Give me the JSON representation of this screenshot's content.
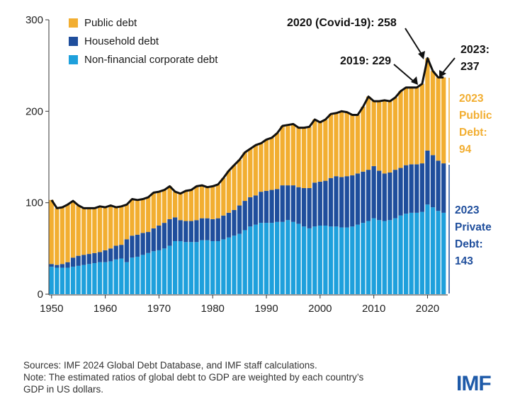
{
  "chart_data": {
    "type": "bar",
    "stacked": true,
    "title": "",
    "xlabel": "",
    "ylabel": "",
    "ylim": [
      0,
      300
    ],
    "yticks": [
      0,
      100,
      200,
      300
    ],
    "xticks": [
      1950,
      1960,
      1970,
      1980,
      1990,
      2000,
      2010,
      2020
    ],
    "legend_position": "top-left",
    "grid": false,
    "years": [
      1950,
      1951,
      1952,
      1953,
      1954,
      1955,
      1956,
      1957,
      1958,
      1959,
      1960,
      1961,
      1962,
      1963,
      1964,
      1965,
      1966,
      1967,
      1968,
      1969,
      1970,
      1971,
      1972,
      1973,
      1974,
      1975,
      1976,
      1977,
      1978,
      1979,
      1980,
      1981,
      1982,
      1983,
      1984,
      1985,
      1986,
      1987,
      1988,
      1989,
      1990,
      1991,
      1992,
      1993,
      1994,
      1995,
      1996,
      1997,
      1998,
      1999,
      2000,
      2001,
      2002,
      2003,
      2004,
      2005,
      2006,
      2007,
      2008,
      2009,
      2010,
      2011,
      2012,
      2013,
      2014,
      2015,
      2016,
      2017,
      2018,
      2019,
      2020,
      2021,
      2022,
      2023
    ],
    "series": [
      {
        "name": "Non-financial corporate debt",
        "color": "#1ea0dc",
        "values": [
          30,
          29,
          29,
          29,
          30,
          31,
          32,
          33,
          34,
          35,
          35,
          36,
          38,
          39,
          35,
          40,
          41,
          43,
          45,
          47,
          48,
          50,
          53,
          58,
          58,
          57,
          57,
          57,
          59,
          59,
          58,
          58,
          60,
          62,
          64,
          66,
          70,
          74,
          76,
          78,
          78,
          78,
          79,
          79,
          81,
          79,
          77,
          74,
          72,
          74,
          75,
          75,
          74,
          74,
          73,
          73,
          74,
          76,
          78,
          80,
          83,
          81,
          80,
          81,
          83,
          86,
          88,
          89,
          89,
          90,
          98,
          95,
          91,
          89
        ]
      },
      {
        "name": "Household debt",
        "color": "#1f4e9c",
        "values": [
          3,
          3,
          4,
          6,
          10,
          11,
          11,
          11,
          11,
          11,
          13,
          14,
          15,
          15,
          25,
          24,
          24,
          24,
          23,
          25,
          27,
          28,
          29,
          26,
          23,
          23,
          23,
          24,
          24,
          24,
          24,
          25,
          26,
          27,
          28,
          31,
          32,
          32,
          32,
          34,
          35,
          36,
          36,
          40,
          38,
          40,
          40,
          42,
          44,
          48,
          48,
          49,
          53,
          55,
          55,
          56,
          56,
          56,
          56,
          56,
          57,
          54,
          52,
          52,
          53,
          52,
          53,
          53,
          53,
          53,
          59,
          57,
          55,
          54
        ]
      },
      {
        "name": "Public debt",
        "color": "#f2ae31",
        "values": [
          70,
          62,
          62,
          63,
          62,
          55,
          51,
          50,
          49,
          50,
          47,
          47,
          42,
          42,
          38,
          40,
          38,
          37,
          38,
          39,
          37,
          36,
          36,
          28,
          29,
          33,
          34,
          37,
          36,
          34,
          36,
          37,
          41,
          46,
          49,
          50,
          53,
          53,
          55,
          53,
          56,
          57,
          61,
          65,
          66,
          67,
          65,
          66,
          67,
          69,
          65,
          67,
          70,
          69,
          72,
          70,
          66,
          64,
          71,
          80,
          71,
          76,
          80,
          78,
          79,
          84,
          85,
          84,
          84,
          87,
          101,
          92,
          91,
          94
        ]
      }
    ],
    "totals": {
      "2019": 229,
      "2020": 258,
      "2023": 237
    }
  },
  "legend": [
    {
      "label": "Public debt",
      "color": "#f2ae31"
    },
    {
      "label": "Household debt",
      "color": "#1f4e9c"
    },
    {
      "label": "Non-financial corporate debt",
      "color": "#1ea0dc"
    }
  ],
  "annotations": {
    "covid": "2020 (Covid-19): 258",
    "y2019": "2019: 229",
    "y2023_line1": "2023:",
    "y2023_line2": "237"
  },
  "side_labels": {
    "public": [
      "2023",
      "Public",
      "Debt:",
      "94"
    ],
    "private": [
      "2023",
      "Private",
      "Debt:",
      "143"
    ]
  },
  "footer": {
    "line1": "Sources: IMF 2024 Global Debt Database, and IMF staff calculations.",
    "line2": "Note: The estimated ratios of global debt to GDP are weighted by each country’s",
    "line3": "GDP in US dollars."
  },
  "logo": "IMF",
  "colors": {
    "public": "#f2ae31",
    "household": "#1f4e9c",
    "corporate": "#1ea0dc",
    "total_line": "#111111"
  }
}
